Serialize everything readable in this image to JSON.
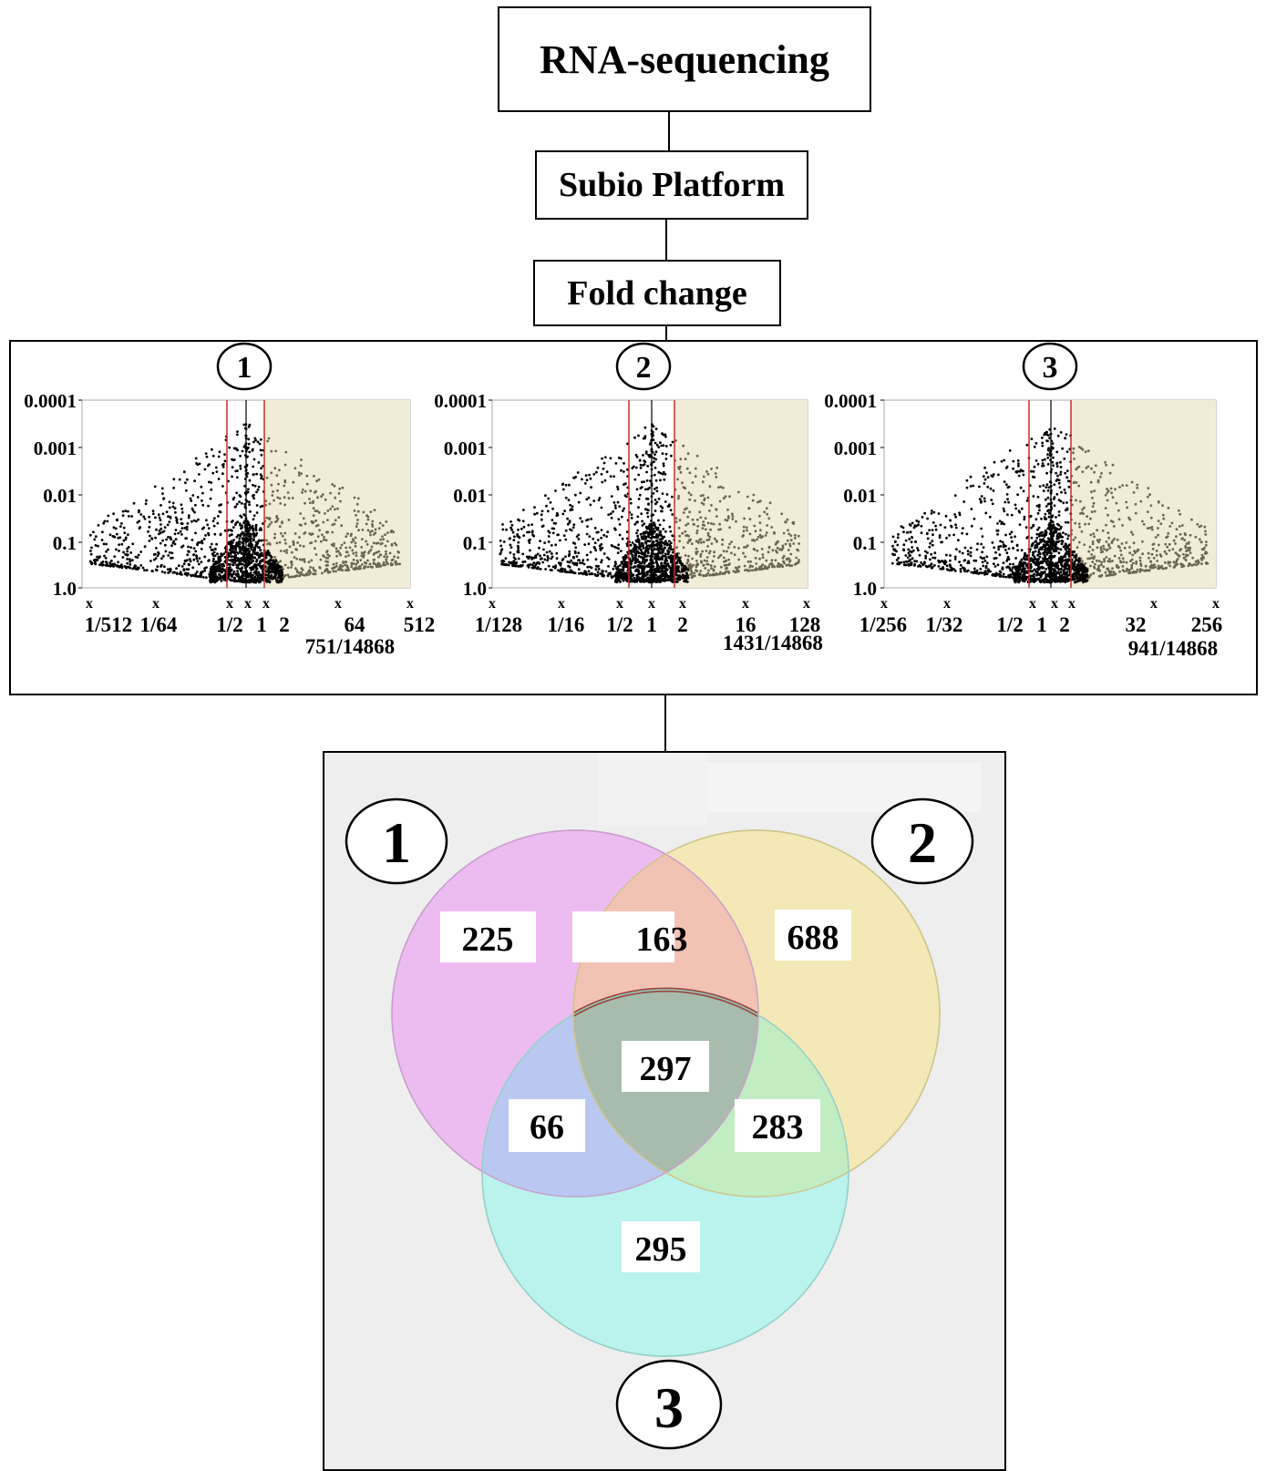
{
  "flow": {
    "step1": "RNA-sequencing",
    "step2": "Subio Platform",
    "step3": "Fold change"
  },
  "plots": [
    {
      "id": "1",
      "count": "751/14868",
      "yticks": [
        "0.0001",
        "0.001",
        "0.01",
        "0.1",
        "1.0"
      ],
      "xticks": [
        "1/512",
        "1/64",
        "1/2",
        "1",
        "2",
        "64",
        "512"
      ]
    },
    {
      "id": "2",
      "count": "1431/14868",
      "yticks": [
        "0.0001",
        "0.001",
        "0.01",
        "0.1",
        "1.0"
      ],
      "xticks": [
        "1/128",
        "1/16",
        "1/2",
        "1",
        "2",
        "16",
        "128"
      ]
    },
    {
      "id": "3",
      "count": "941/14868",
      "yticks": [
        "0.0001",
        "0.001",
        "0.01",
        "0.1",
        "1.0"
      ],
      "xticks": [
        "1/256",
        "1/32",
        "1/2",
        "1",
        "2",
        "32",
        "256"
      ]
    }
  ],
  "venn": {
    "set_labels": [
      "1",
      "2",
      "3"
    ],
    "only_1": "225",
    "only_2": "688",
    "only_3": "295",
    "1_and_2": "163",
    "1_and_3": "66",
    "2_and_3": "283",
    "all": "297"
  },
  "colors": {
    "set1": "#ebb8f0",
    "set2": "#f3e8b2",
    "set3": "#b6f2ec",
    "highlight_region": "#f1ecd6",
    "threshold_line": "#c0302a"
  }
}
